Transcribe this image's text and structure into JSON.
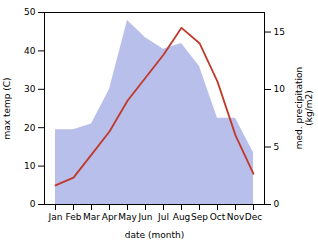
{
  "chart_data": {
    "type": "line",
    "xlabel": "date (month)",
    "ylabel": "max temp (C)",
    "y2label": "med. precipitation\n(kg/m2)",
    "categories": [
      "Jan",
      "Feb",
      "Mar",
      "Apr",
      "May",
      "Jun",
      "Jul",
      "Aug",
      "Sep",
      "Oct",
      "Nov",
      "Dec"
    ],
    "series": [
      {
        "type": "area",
        "axis": "y2",
        "color": "#b0b8e8",
        "values": [
          6.5,
          6.5,
          7,
          10,
          16,
          14.5,
          13.5,
          14,
          12,
          7.5,
          7.5,
          4.5
        ]
      },
      {
        "type": "line",
        "color": "#c0392b",
        "values": [
          5,
          7,
          13,
          19,
          27,
          33,
          39,
          46,
          42,
          32,
          18,
          8
        ]
      }
    ],
    "ylim": [
      0,
      50
    ],
    "yticks": [
      0,
      10,
      20,
      30,
      40,
      50
    ],
    "y2lim": [
      0,
      16.7
    ],
    "y2ticks": [
      0,
      5,
      10,
      15
    ],
    "grid": false
  }
}
